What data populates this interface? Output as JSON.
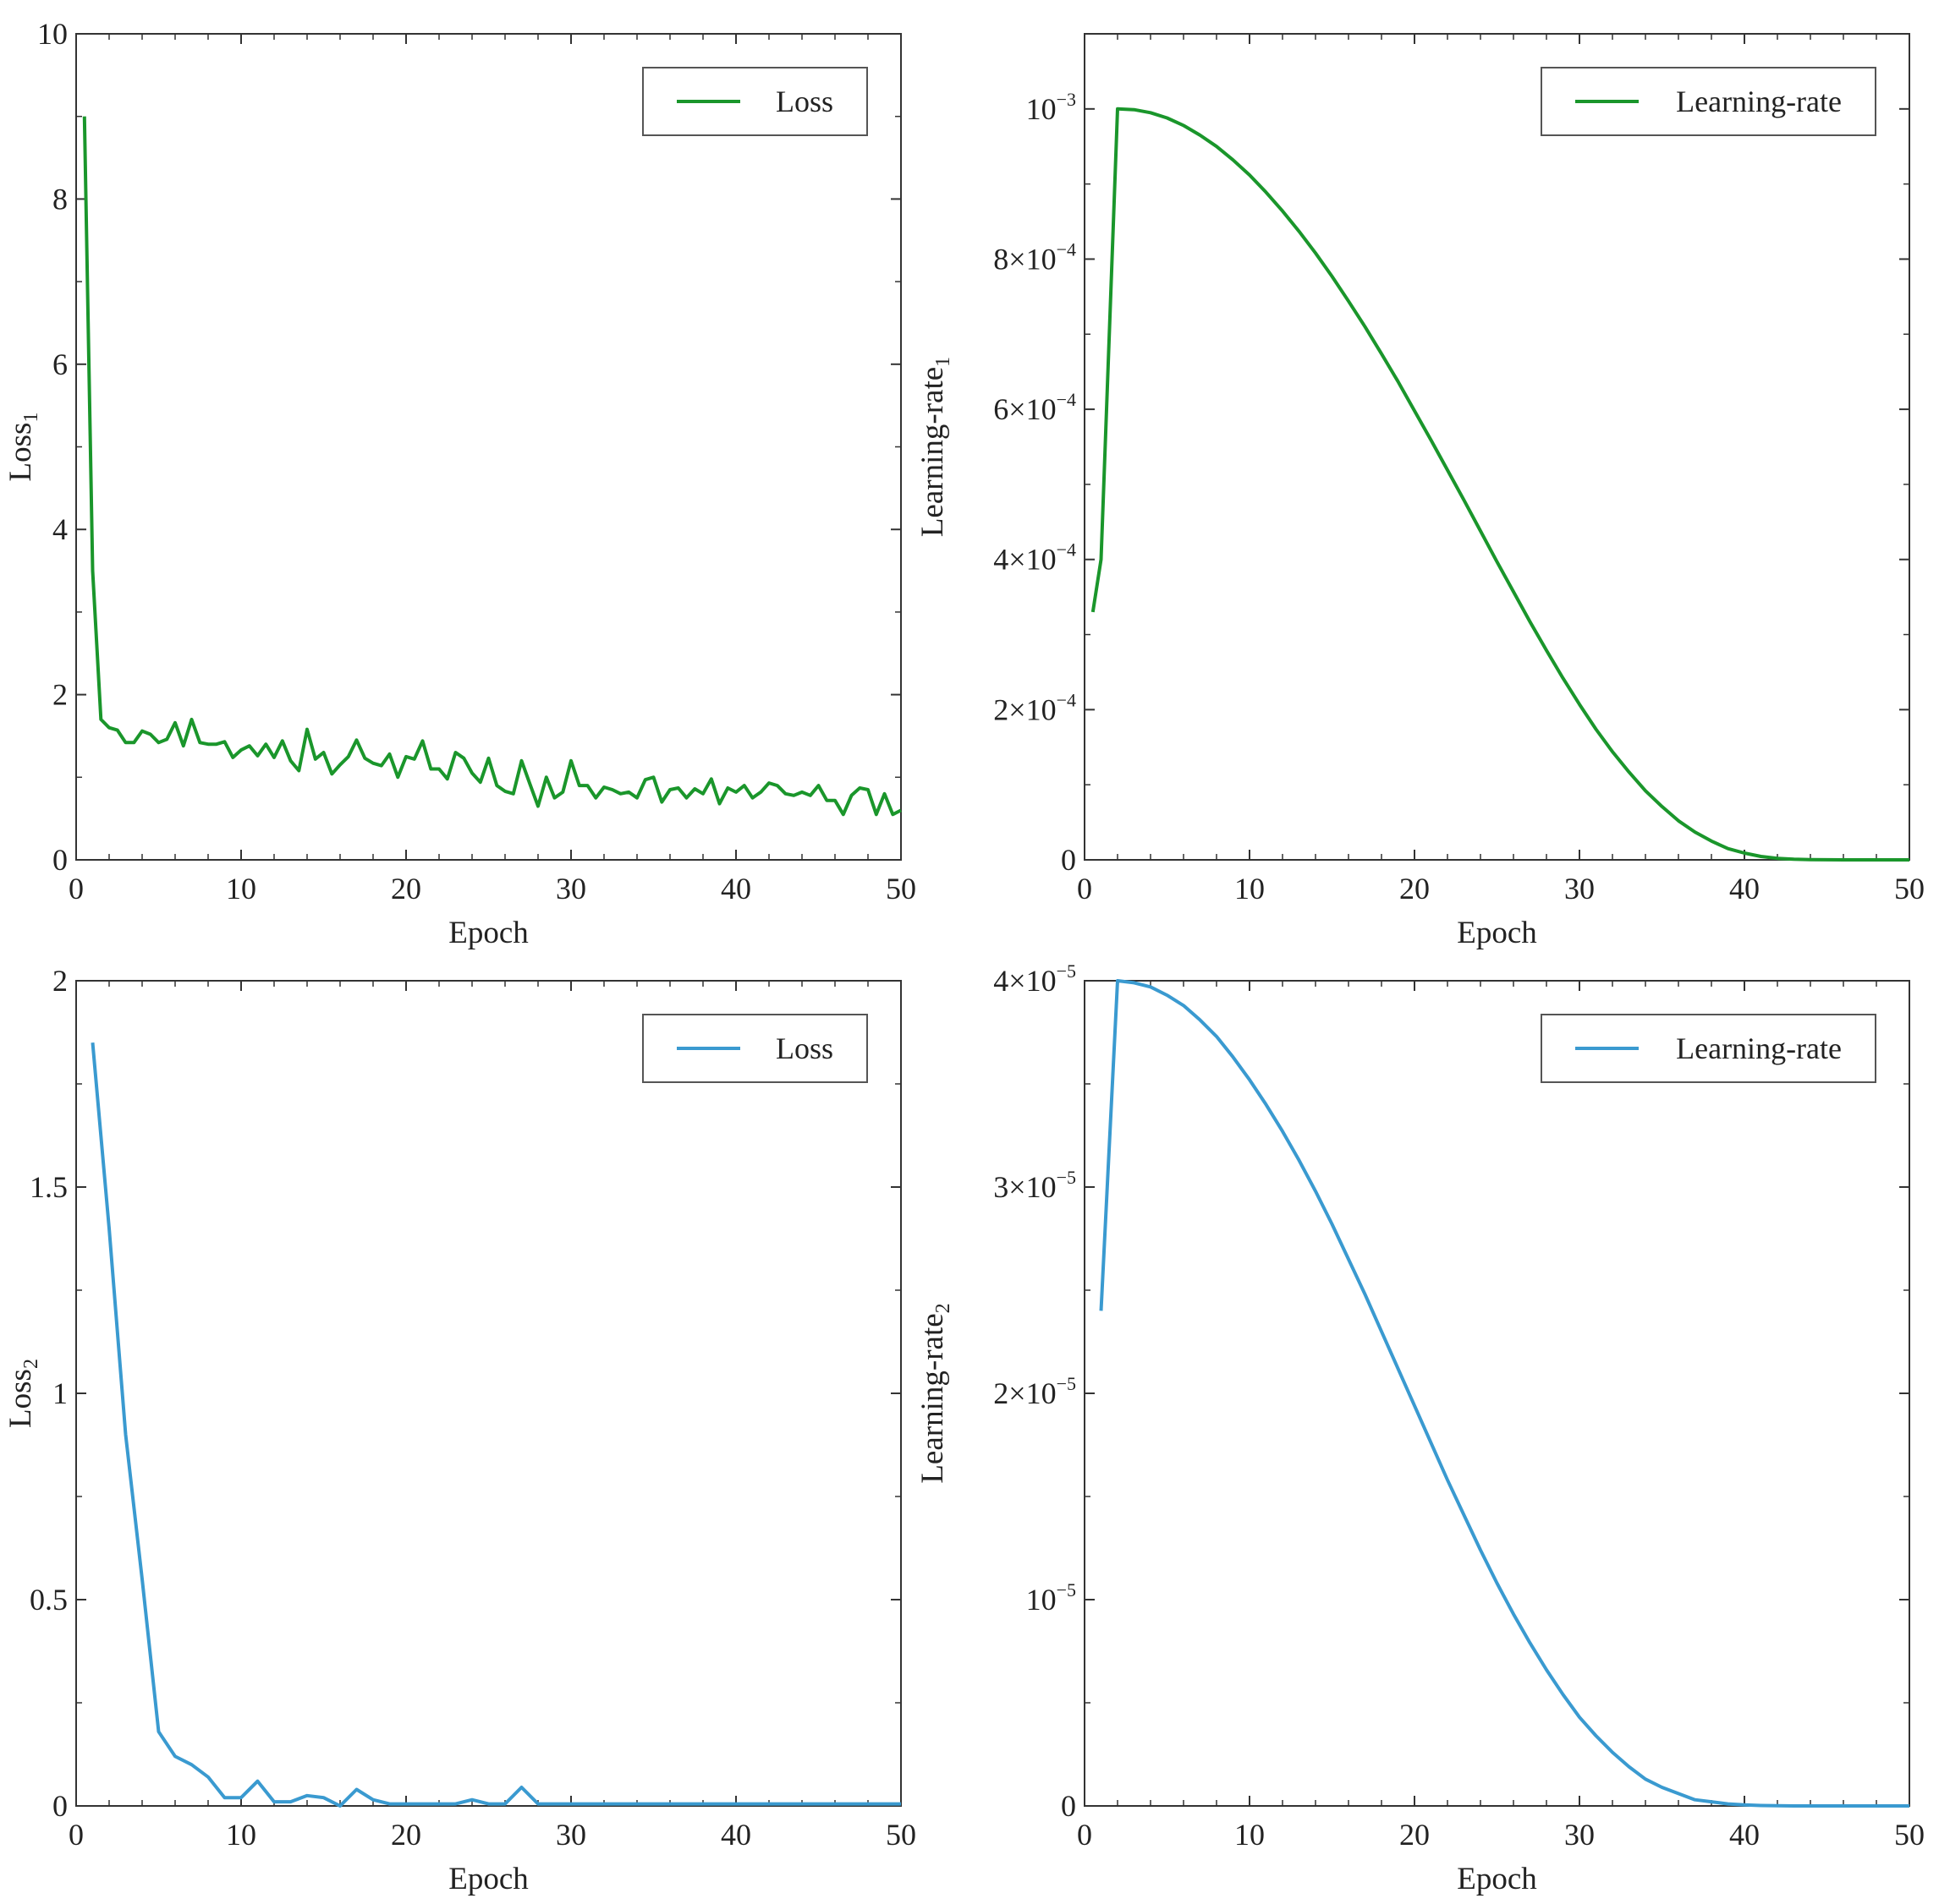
{
  "chart_data": [
    {
      "id": "loss1",
      "type": "line",
      "xlabel": "Epoch",
      "ylabel": "Loss",
      "ylabel_sub": "1",
      "xlim": [
        0,
        50
      ],
      "ylim": [
        0,
        10
      ],
      "xticks": [
        0,
        10,
        20,
        30,
        40,
        50
      ],
      "yticks": [
        0,
        2,
        4,
        6,
        8,
        10
      ],
      "ytick_labels": [
        {
          "text": "0"
        },
        {
          "text": "2"
        },
        {
          "text": "4"
        },
        {
          "text": "6"
        },
        {
          "text": "8"
        },
        {
          "text": "10"
        }
      ],
      "legend": {
        "label": "Loss",
        "position": "top-right"
      },
      "color": "#1a962b",
      "series": [
        {
          "name": "Loss",
          "x": [
            0.5,
            1,
            1.5,
            2,
            2.5,
            3,
            3.5,
            4,
            4.5,
            5,
            5.5,
            6,
            6.5,
            7,
            7.5,
            8,
            8.5,
            9,
            9.5,
            10,
            10.5,
            11,
            11.5,
            12,
            12.5,
            13,
            13.5,
            14,
            14.5,
            15,
            15.5,
            16,
            16.5,
            17,
            17.5,
            18,
            18.5,
            19,
            19.5,
            20,
            20.5,
            21,
            21.5,
            22,
            22.5,
            23,
            23.5,
            24,
            24.5,
            25,
            25.5,
            26,
            26.5,
            27,
            27.5,
            28,
            28.5,
            29,
            29.5,
            30,
            30.5,
            31,
            31.5,
            32,
            32.5,
            33,
            33.5,
            34,
            34.5,
            35,
            35.5,
            36,
            36.5,
            37,
            37.5,
            38,
            38.5,
            39,
            39.5,
            40,
            40.5,
            41,
            41.5,
            42,
            42.5,
            43,
            43.5,
            44,
            44.5,
            45,
            45.5,
            46,
            46.5,
            47,
            47.5,
            48,
            48.5,
            49,
            49.5,
            50
          ],
          "y": [
            9.0,
            3.5,
            1.7,
            1.6,
            1.57,
            1.42,
            1.42,
            1.56,
            1.52,
            1.42,
            1.46,
            1.66,
            1.38,
            1.7,
            1.42,
            1.4,
            1.4,
            1.43,
            1.24,
            1.33,
            1.38,
            1.26,
            1.4,
            1.24,
            1.44,
            1.2,
            1.08,
            1.58,
            1.22,
            1.3,
            1.04,
            1.15,
            1.25,
            1.45,
            1.23,
            1.17,
            1.14,
            1.28,
            1.0,
            1.25,
            1.22,
            1.44,
            1.1,
            1.1,
            0.98,
            1.3,
            1.23,
            1.05,
            0.94,
            1.23,
            0.9,
            0.83,
            0.8,
            1.2,
            0.92,
            0.65,
            1.0,
            0.75,
            0.82,
            1.2,
            0.9,
            0.9,
            0.75,
            0.88,
            0.85,
            0.8,
            0.82,
            0.75,
            0.97,
            1.0,
            0.7,
            0.85,
            0.87,
            0.75,
            0.86,
            0.8,
            0.98,
            0.68,
            0.87,
            0.82,
            0.9,
            0.75,
            0.82,
            0.93,
            0.9,
            0.8,
            0.78,
            0.82,
            0.78,
            0.9,
            0.72,
            0.72,
            0.55,
            0.78,
            0.87,
            0.85,
            0.55,
            0.8,
            0.55,
            0.6
          ]
        }
      ]
    },
    {
      "id": "lr1",
      "type": "line",
      "xlabel": "Epoch",
      "ylabel": "Learning-rate",
      "ylabel_sub": "1",
      "xlim": [
        0,
        50
      ],
      "ylim": [
        0,
        0.0011
      ],
      "xticks": [
        0,
        10,
        20,
        30,
        40,
        50
      ],
      "yticks": [
        0,
        0.0002,
        0.0004,
        0.0006,
        0.0008,
        0.001
      ],
      "ytick_labels": [
        {
          "text": "0"
        },
        {
          "mant": "2",
          "times": "×",
          "base": "10",
          "exp": "−4"
        },
        {
          "mant": "4",
          "times": "×",
          "base": "10",
          "exp": "−4"
        },
        {
          "mant": "6",
          "times": "×",
          "base": "10",
          "exp": "−4"
        },
        {
          "mant": "8",
          "times": "×",
          "base": "10",
          "exp": "−4"
        },
        {
          "mant": "",
          "times": "",
          "base": "10",
          "exp": "−3"
        }
      ],
      "legend": {
        "label": "Learning-rate",
        "position": "top-right"
      },
      "color": "#1a962b",
      "series": [
        {
          "name": "Learning-rate",
          "x": [
            0.5,
            1,
            2,
            3,
            4,
            5,
            6,
            7,
            8,
            9,
            10,
            11,
            12,
            13,
            14,
            15,
            16,
            17,
            18,
            19,
            20,
            21,
            22,
            23,
            24,
            25,
            26,
            27,
            28,
            29,
            30,
            31,
            32,
            33,
            34,
            35,
            36,
            37,
            38,
            39,
            40,
            41,
            42,
            43,
            44,
            45,
            46,
            47,
            48,
            49,
            50
          ],
          "y": [
            0.00033,
            0.0004,
            0.001,
            0.000999,
            0.000995,
            0.000988,
            0.000978,
            0.000965,
            0.00095,
            0.000932,
            0.000912,
            0.000889,
            0.000864,
            0.000837,
            0.000808,
            0.000777,
            0.000744,
            0.00071,
            0.000674,
            0.000637,
            0.000598,
            0.000559,
            0.000519,
            0.000479,
            0.000438,
            0.000397,
            0.000357,
            0.000317,
            0.000279,
            0.000242,
            0.000207,
            0.000174,
            0.000144,
            0.000117,
            9.2e-05,
            7.1e-05,
            5.2e-05,
            3.7e-05,
            2.5e-05,
            1.5e-05,
            9e-06,
            4.5e-06,
            2e-06,
            8e-07,
            3e-07,
            1e-07,
            5e-08,
            2e-08,
            1e-08,
            0.0,
            0.0
          ]
        }
      ]
    },
    {
      "id": "loss2",
      "type": "line",
      "xlabel": "Epoch",
      "ylabel": "Loss",
      "ylabel_sub": "2",
      "xlim": [
        0,
        50
      ],
      "ylim": [
        0,
        2
      ],
      "xticks": [
        0,
        10,
        20,
        30,
        40,
        50
      ],
      "yticks": [
        0,
        0.5,
        1,
        1.5,
        2
      ],
      "ytick_labels": [
        {
          "text": "0"
        },
        {
          "text": "0.5"
        },
        {
          "text": "1"
        },
        {
          "text": "1.5"
        },
        {
          "text": "2"
        }
      ],
      "legend": {
        "label": "Loss",
        "position": "top-right"
      },
      "color": "#3a9ad0",
      "series": [
        {
          "name": "Loss",
          "x": [
            1,
            2,
            3,
            4,
            5,
            6,
            7,
            8,
            9,
            10,
            11,
            12,
            13,
            14,
            15,
            16,
            17,
            18,
            19,
            20,
            21,
            22,
            23,
            24,
            25,
            26,
            27,
            28,
            29,
            30,
            31,
            32,
            33,
            34,
            35,
            36,
            37,
            38,
            39,
            40,
            41,
            42,
            43,
            44,
            45,
            46,
            47,
            48,
            49,
            50
          ],
          "y": [
            1.85,
            1.4,
            0.9,
            0.55,
            0.18,
            0.12,
            0.1,
            0.07,
            0.02,
            0.02,
            0.06,
            0.01,
            0.01,
            0.025,
            0.02,
            0.0,
            0.04,
            0.015,
            0.005,
            0.005,
            0.005,
            0.005,
            0.005,
            0.015,
            0.005,
            0.005,
            0.045,
            0.005,
            0.005,
            0.005,
            0.005,
            0.005,
            0.005,
            0.005,
            0.005,
            0.005,
            0.005,
            0.005,
            0.005,
            0.005,
            0.005,
            0.005,
            0.005,
            0.005,
            0.005,
            0.005,
            0.005,
            0.005,
            0.005,
            0.005
          ]
        }
      ]
    },
    {
      "id": "lr2",
      "type": "line",
      "xlabel": "Epoch",
      "ylabel": "Learning-rate",
      "ylabel_sub": "2",
      "xlim": [
        0,
        50
      ],
      "ylim": [
        0,
        4e-05
      ],
      "xticks": [
        0,
        10,
        20,
        30,
        40,
        50
      ],
      "yticks": [
        0,
        1e-05,
        2e-05,
        3e-05,
        4e-05
      ],
      "ytick_labels": [
        {
          "text": "0"
        },
        {
          "mant": "",
          "times": "",
          "base": "10",
          "exp": "−5"
        },
        {
          "mant": "2",
          "times": "×",
          "base": "10",
          "exp": "−5"
        },
        {
          "mant": "3",
          "times": "×",
          "base": "10",
          "exp": "−5"
        },
        {
          "mant": "4",
          "times": "×",
          "base": "10",
          "exp": "−5"
        }
      ],
      "legend": {
        "label": "Learning-rate",
        "position": "top-right"
      },
      "color": "#3a9ad0",
      "series": [
        {
          "name": "Learning-rate",
          "x": [
            1,
            2,
            3,
            4,
            5,
            6,
            7,
            8,
            9,
            10,
            11,
            12,
            13,
            14,
            15,
            16,
            17,
            18,
            19,
            20,
            21,
            22,
            23,
            24,
            25,
            26,
            27,
            28,
            29,
            30,
            31,
            32,
            33,
            34,
            35,
            36,
            37,
            38,
            39,
            40,
            41,
            42,
            43,
            44,
            45,
            46,
            47,
            48,
            49,
            50
          ],
          "y": [
            2.4e-05,
            4e-05,
            3.99e-05,
            3.97e-05,
            3.93e-05,
            3.88e-05,
            3.81e-05,
            3.73e-05,
            3.63e-05,
            3.52e-05,
            3.4e-05,
            3.27e-05,
            3.13e-05,
            2.98e-05,
            2.82e-05,
            2.65e-05,
            2.48e-05,
            2.3e-05,
            2.12e-05,
            1.94e-05,
            1.76e-05,
            1.58e-05,
            1.41e-05,
            1.24e-05,
            1.08e-05,
            9.3e-06,
            7.9e-06,
            6.6e-06,
            5.4e-06,
            4.3e-06,
            3.4e-06,
            2.6e-06,
            1.9e-06,
            1.3e-06,
            9e-07,
            6e-07,
            3e-07,
            2e-07,
            1e-07,
            5e-08,
            2e-08,
            1e-08,
            0.0,
            0.0,
            0.0,
            0.0,
            0.0,
            0.0,
            0.0,
            0.0
          ]
        }
      ]
    }
  ]
}
